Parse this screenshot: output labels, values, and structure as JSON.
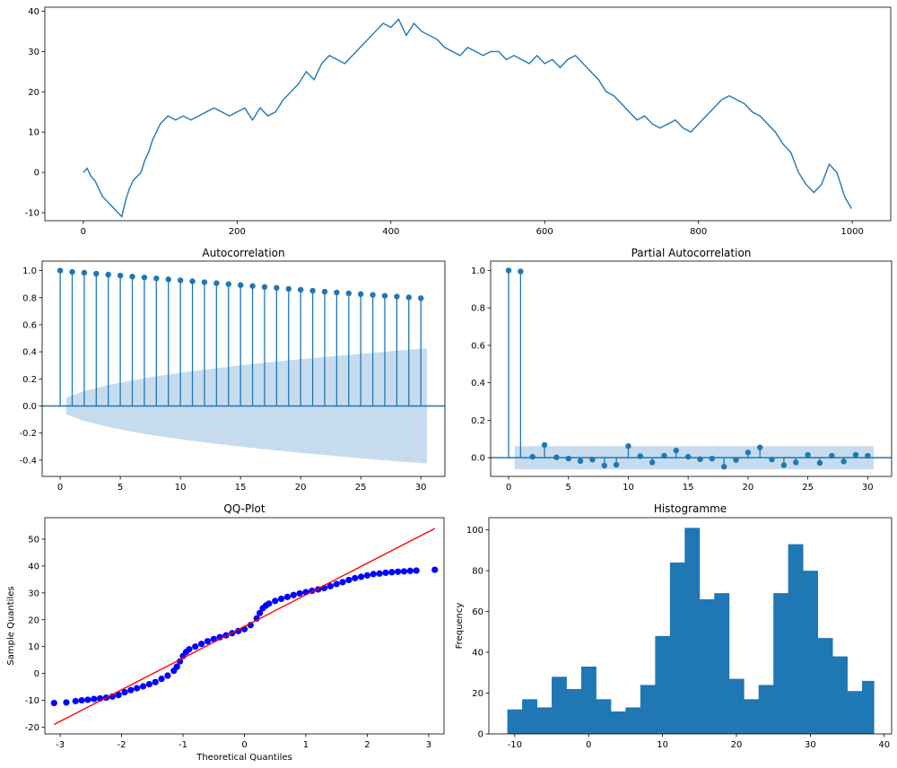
{
  "chart_data": [
    {
      "type": "line",
      "title": "",
      "xlabel": "",
      "ylabel": "",
      "color": "#1f77b4",
      "xlim": [
        -50,
        1050
      ],
      "ylim": [
        -12,
        41
      ],
      "x_ticks": [
        0,
        200,
        400,
        600,
        800,
        1000
      ],
      "y_ticks": [
        -10,
        0,
        10,
        20,
        30,
        40
      ],
      "x": [
        0,
        5,
        10,
        15,
        20,
        25,
        30,
        35,
        40,
        45,
        50,
        55,
        60,
        65,
        70,
        75,
        80,
        85,
        90,
        95,
        100,
        110,
        120,
        130,
        140,
        150,
        160,
        170,
        180,
        190,
        200,
        210,
        220,
        230,
        240,
        250,
        260,
        270,
        280,
        290,
        300,
        310,
        320,
        330,
        340,
        350,
        360,
        370,
        380,
        390,
        400,
        410,
        420,
        430,
        440,
        450,
        460,
        470,
        480,
        490,
        500,
        510,
        520,
        530,
        540,
        550,
        560,
        570,
        580,
        590,
        600,
        610,
        620,
        630,
        640,
        650,
        660,
        670,
        680,
        690,
        700,
        710,
        720,
        730,
        740,
        750,
        760,
        770,
        780,
        790,
        800,
        810,
        820,
        830,
        840,
        850,
        860,
        870,
        880,
        890,
        900,
        910,
        920,
        930,
        940,
        950,
        960,
        970,
        980,
        990,
        999
      ],
      "y": [
        0,
        1,
        -1,
        -2,
        -4,
        -6,
        -7,
        -8,
        -9,
        -10,
        -11,
        -7,
        -4,
        -2,
        -1,
        0,
        3,
        5,
        8,
        10,
        12,
        14,
        13,
        14,
        13,
        14,
        15,
        16,
        15,
        14,
        15,
        16,
        13,
        16,
        14,
        15,
        18,
        20,
        22,
        25,
        23,
        27,
        29,
        28,
        27,
        29,
        31,
        33,
        35,
        37,
        36,
        38,
        34,
        37,
        35,
        34,
        33,
        31,
        30,
        29,
        31,
        30,
        29,
        30,
        30,
        28,
        29,
        28,
        27,
        29,
        27,
        28,
        26,
        28,
        29,
        27,
        25,
        23,
        20,
        19,
        17,
        15,
        13,
        14,
        12,
        11,
        12,
        13,
        11,
        10,
        12,
        14,
        16,
        18,
        19,
        18,
        17,
        15,
        14,
        12,
        10,
        7,
        5,
        0,
        -3,
        -5,
        -3,
        2,
        0,
        -6,
        -9
      ]
    },
    {
      "type": "stem",
      "title": "Autocorrelation",
      "color": "#1f77b4",
      "xlim": [
        -1.5,
        32
      ],
      "ylim": [
        -0.52,
        1.07
      ],
      "x_ticks": [
        0,
        5,
        10,
        15,
        20,
        25,
        30
      ],
      "y_ticks": [
        -0.4,
        -0.2,
        0.0,
        0.2,
        0.4,
        0.6,
        0.8,
        1.0
      ],
      "x": [
        0,
        1,
        2,
        3,
        4,
        5,
        6,
        7,
        8,
        9,
        10,
        11,
        12,
        13,
        14,
        15,
        16,
        17,
        18,
        19,
        20,
        21,
        22,
        23,
        24,
        25,
        26,
        27,
        28,
        29,
        30
      ],
      "y": [
        1.0,
        0.99,
        0.984,
        0.977,
        0.97,
        0.963,
        0.956,
        0.949,
        0.942,
        0.935,
        0.928,
        0.921,
        0.914,
        0.907,
        0.9,
        0.893,
        0.886,
        0.879,
        0.872,
        0.865,
        0.858,
        0.851,
        0.844,
        0.838,
        0.832,
        0.826,
        0.82,
        0.814,
        0.808,
        0.802,
        0.796
      ],
      "confidence_band": {
        "x": [
          0.5,
          2,
          4,
          6,
          8,
          10,
          12,
          14,
          16,
          18,
          20,
          22,
          24,
          26,
          28,
          30.5
        ],
        "upper": [
          0.062,
          0.11,
          0.155,
          0.19,
          0.22,
          0.245,
          0.268,
          0.29,
          0.31,
          0.328,
          0.346,
          0.362,
          0.378,
          0.393,
          0.408,
          0.425
        ],
        "color": "#c6dcee"
      }
    },
    {
      "type": "stem",
      "title": "Partial Autocorrelation",
      "color": "#1f77b4",
      "xlim": [
        -1.5,
        32
      ],
      "ylim": [
        -0.1,
        1.05
      ],
      "x_ticks": [
        0,
        5,
        10,
        15,
        20,
        25,
        30
      ],
      "y_ticks": [
        0.0,
        0.2,
        0.4,
        0.6,
        0.8,
        1.0
      ],
      "x": [
        0,
        1,
        2,
        3,
        4,
        5,
        6,
        7,
        8,
        9,
        10,
        11,
        12,
        13,
        14,
        15,
        16,
        17,
        18,
        19,
        20,
        21,
        22,
        23,
        24,
        25,
        26,
        27,
        28,
        29,
        30
      ],
      "y": [
        1.0,
        0.995,
        0.005,
        0.068,
        0.002,
        -0.005,
        -0.018,
        -0.01,
        -0.042,
        -0.038,
        0.062,
        0.008,
        -0.025,
        0.01,
        0.038,
        0.005,
        -0.008,
        -0.005,
        -0.048,
        -0.012,
        0.028,
        0.055,
        -0.01,
        -0.04,
        -0.025,
        0.015,
        -0.028,
        0.01,
        -0.02,
        0.015,
        0.01
      ],
      "confidence_band": {
        "x": [
          0.5,
          30.5
        ],
        "half_width": 0.062,
        "color": "#c6dcee"
      }
    },
    {
      "type": "scatter",
      "title": "QQ-Plot",
      "xlabel": "Theoretical Quantiles",
      "ylabel": "Sample Quantiles",
      "point_color": "#0000ff",
      "line_color": "#ff0000",
      "xlim": [
        -3.25,
        3.25
      ],
      "ylim": [
        -22.5,
        58
      ],
      "x_ticks": [
        -3,
        -2,
        -1,
        0,
        1,
        2,
        3
      ],
      "y_ticks": [
        -20,
        -10,
        0,
        10,
        20,
        30,
        40,
        50
      ],
      "reference_line": {
        "x": [
          -3.1,
          3.1
        ],
        "y": [
          -19,
          54
        ]
      },
      "x": [
        -3.1,
        -2.9,
        -2.75,
        -2.65,
        -2.55,
        -2.45,
        -2.35,
        -2.25,
        -2.15,
        -2.05,
        -1.95,
        -1.85,
        -1.75,
        -1.65,
        -1.55,
        -1.45,
        -1.35,
        -1.25,
        -1.15,
        -1.1,
        -1.05,
        -1.0,
        -0.95,
        -0.9,
        -0.8,
        -0.7,
        -0.6,
        -0.5,
        -0.4,
        -0.3,
        -0.2,
        -0.1,
        0.0,
        0.1,
        0.2,
        0.25,
        0.3,
        0.35,
        0.4,
        0.5,
        0.6,
        0.7,
        0.8,
        0.9,
        1.0,
        1.1,
        1.2,
        1.3,
        1.4,
        1.5,
        1.6,
        1.7,
        1.8,
        1.9,
        2.0,
        2.1,
        2.2,
        2.3,
        2.4,
        2.5,
        2.6,
        2.7,
        2.8,
        3.1
      ],
      "y": [
        -11,
        -10.8,
        -10.3,
        -10.0,
        -9.8,
        -9.5,
        -9.3,
        -9.0,
        -8.6,
        -8.0,
        -7.0,
        -6.2,
        -5.5,
        -4.8,
        -4.0,
        -3.2,
        -2.0,
        -0.8,
        1.0,
        2.5,
        4.5,
        6.5,
        8.0,
        9.0,
        10.0,
        11.0,
        12.0,
        12.8,
        13.5,
        14.2,
        15.0,
        15.8,
        16.5,
        18.0,
        20.5,
        22.5,
        24.3,
        25.3,
        26.0,
        27.0,
        27.8,
        28.5,
        29.2,
        29.8,
        30.3,
        30.8,
        31.3,
        31.8,
        32.5,
        33.3,
        34.0,
        34.8,
        35.5,
        36.0,
        36.5,
        37.0,
        37.2,
        37.5,
        37.7,
        37.9,
        38.0,
        38.2,
        38.3,
        38.6
      ]
    },
    {
      "type": "bar",
      "title": "Histogramme",
      "ylabel": "Frequency",
      "color": "#1f77b4",
      "xlim": [
        -13.5,
        41
      ],
      "ylim": [
        0,
        106
      ],
      "x_ticks": [
        -10,
        0,
        10,
        20,
        30,
        40
      ],
      "y_ticks": [
        0,
        20,
        40,
        60,
        80,
        100
      ],
      "bin_edges": [
        -11,
        -9,
        -7,
        -5,
        -3,
        -1,
        1,
        3,
        5,
        7,
        9,
        11,
        13,
        15,
        17,
        19,
        21,
        23,
        25,
        27,
        29,
        31,
        33,
        35,
        37,
        38.6
      ],
      "counts": [
        12,
        17,
        13,
        28,
        22,
        33,
        17,
        11,
        13,
        24,
        48,
        84,
        101,
        66,
        69,
        27,
        17,
        24,
        69,
        93,
        80,
        47,
        38,
        21,
        26
      ]
    }
  ]
}
